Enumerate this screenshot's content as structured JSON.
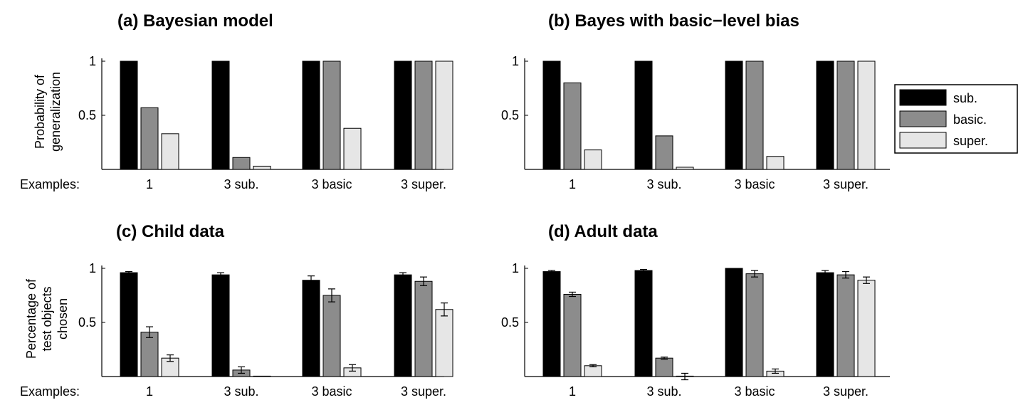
{
  "legend": [
    {
      "label": "sub.",
      "color": "#000000"
    },
    {
      "label": "basic.",
      "color": "#8c8c8c"
    },
    {
      "label": "super.",
      "color": "#e6e6e6"
    }
  ],
  "chart_data": [
    {
      "type": "bar",
      "title": "(a) Bayesian model",
      "ylabel": [
        "Probability of",
        "generalization"
      ],
      "xlabel": "Examples:",
      "categories": [
        "1",
        "3 sub.",
        "3 basic",
        "3 super."
      ],
      "yticks": [
        "1",
        "0.5"
      ],
      "ylim": [
        0,
        1
      ],
      "series": [
        {
          "name": "sub.",
          "values": [
            1.0,
            1.0,
            1.0,
            1.0
          ]
        },
        {
          "name": "basic.",
          "values": [
            0.57,
            0.11,
            1.0,
            1.0
          ]
        },
        {
          "name": "super.",
          "values": [
            0.33,
            0.03,
            0.38,
            1.0
          ]
        }
      ]
    },
    {
      "type": "bar",
      "title": "(b) Bayes with basic−level bias",
      "ylabel": [],
      "xlabel": "",
      "categories": [
        "1",
        "3 sub.",
        "3 basic",
        "3 super."
      ],
      "yticks": [
        "1",
        "0.5"
      ],
      "ylim": [
        0,
        1
      ],
      "series": [
        {
          "name": "sub.",
          "values": [
            1.0,
            1.0,
            1.0,
            1.0
          ]
        },
        {
          "name": "basic.",
          "values": [
            0.8,
            0.31,
            1.0,
            1.0
          ]
        },
        {
          "name": "super.",
          "values": [
            0.18,
            0.02,
            0.12,
            1.0
          ]
        }
      ]
    },
    {
      "type": "bar",
      "title": "(c) Child data",
      "ylabel": [
        "Percentage of",
        "test objects",
        "chosen"
      ],
      "xlabel": "Examples:",
      "categories": [
        "1",
        "3 sub.",
        "3 basic",
        "3 super."
      ],
      "yticks": [
        "1",
        "0.5"
      ],
      "ylim": [
        0,
        1
      ],
      "series": [
        {
          "name": "sub.",
          "values": [
            0.96,
            0.94,
            0.89,
            0.94
          ],
          "errors": [
            0.01,
            0.02,
            0.04,
            0.02
          ]
        },
        {
          "name": "basic.",
          "values": [
            0.41,
            0.06,
            0.75,
            0.88
          ],
          "errors": [
            0.05,
            0.03,
            0.06,
            0.04
          ]
        },
        {
          "name": "super.",
          "values": [
            0.17,
            0.0,
            0.08,
            0.62
          ],
          "errors": [
            0.03,
            0.0,
            0.03,
            0.06
          ]
        }
      ]
    },
    {
      "type": "bar",
      "title": "(d) Adult data",
      "ylabel": [],
      "xlabel": "",
      "categories": [
        "1",
        "3 sub.",
        "3 basic",
        "3 super."
      ],
      "yticks": [
        "1",
        "0.5"
      ],
      "ylim": [
        0,
        1
      ],
      "series": [
        {
          "name": "sub.",
          "values": [
            0.97,
            0.98,
            1.0,
            0.96
          ],
          "errors": [
            0.01,
            0.01,
            0.0,
            0.02
          ]
        },
        {
          "name": "basic.",
          "values": [
            0.76,
            0.17,
            0.95,
            0.94
          ],
          "errors": [
            0.02,
            0.01,
            0.03,
            0.03
          ]
        },
        {
          "name": "super.",
          "values": [
            0.1,
            0.0,
            0.05,
            0.89
          ],
          "errors": [
            0.01,
            0.03,
            0.02,
            0.03
          ]
        }
      ]
    }
  ]
}
